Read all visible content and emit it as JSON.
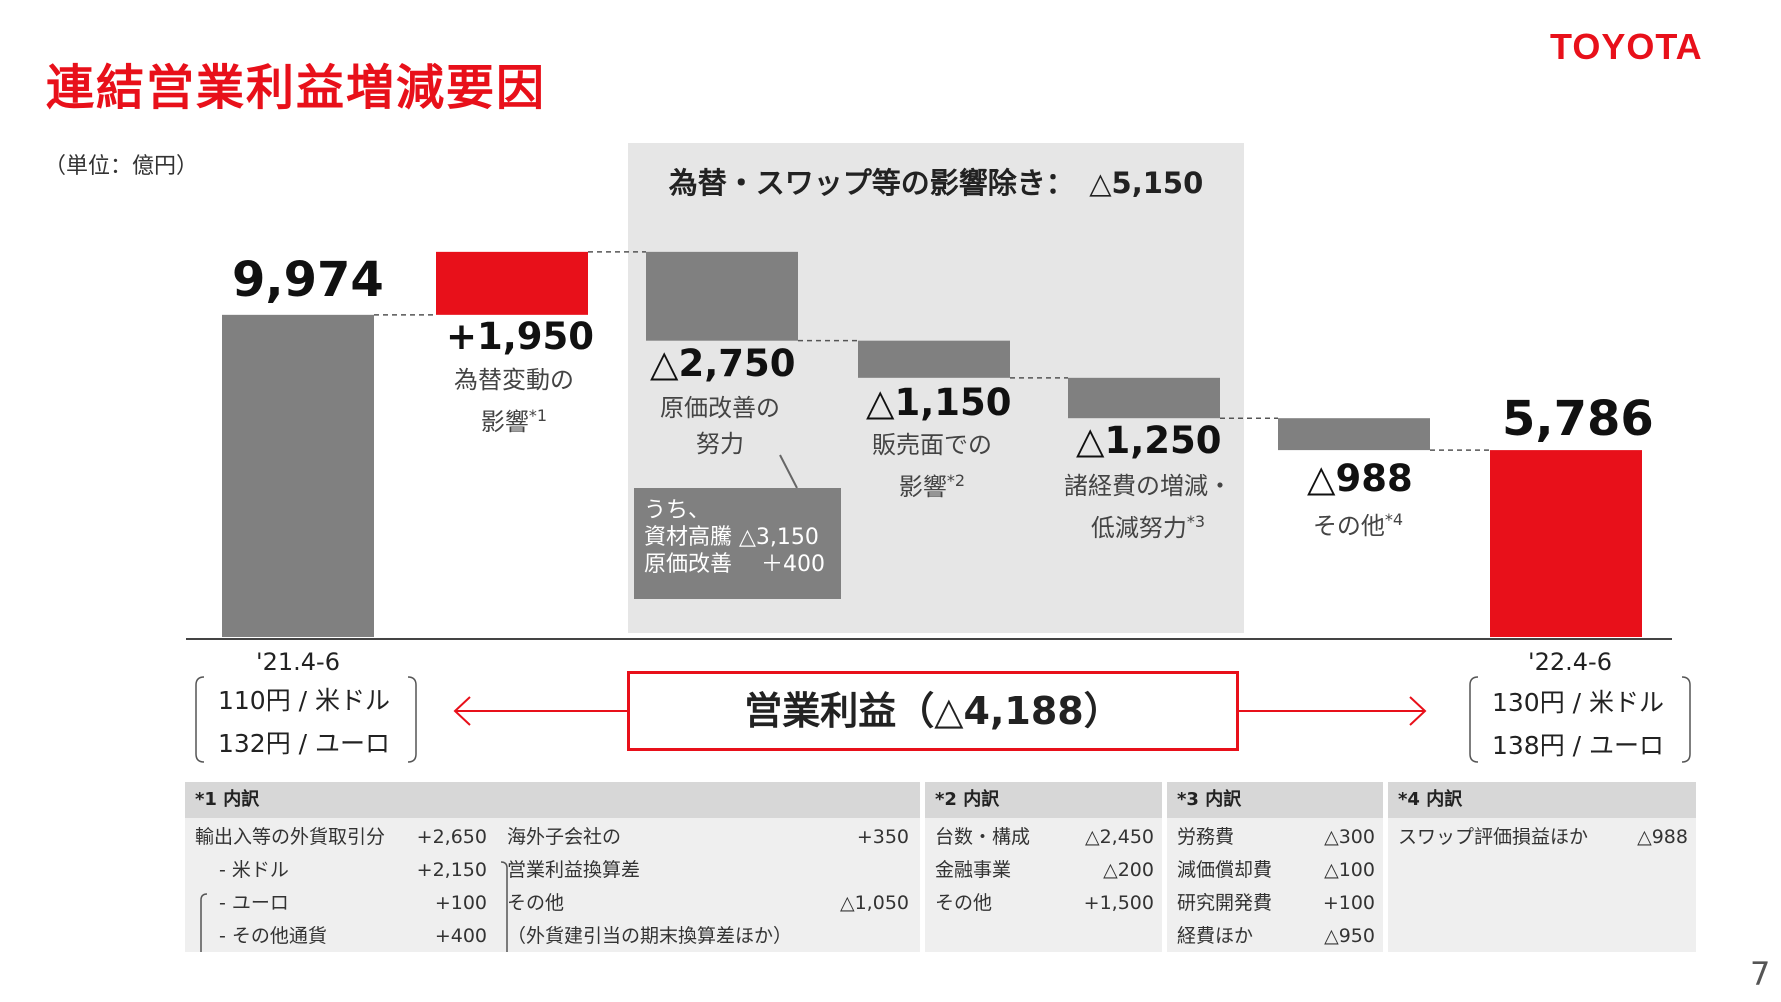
{
  "header": {
    "title": "連結営業利益増減要因",
    "logo": "TOYOTA",
    "unit": "（単位：億円）",
    "page_number": "7"
  },
  "colors": {
    "red": "#e8101a",
    "gray": "#808080",
    "shade": "#e6e6e6"
  },
  "shaded_area": {
    "title": "為替・スワップ等の影響除き：　△5,150"
  },
  "chart_data": {
    "type": "bar",
    "subtype": "waterfall",
    "categories": [
      "'21.4-6",
      "為替変動の影響",
      "原価改善の努力",
      "販売面での影響",
      "諸経費の増減・低減努力",
      "その他",
      "'22.4-6"
    ],
    "values": [
      9974,
      1950,
      -2750,
      -1150,
      -1250,
      -988,
      5786
    ],
    "kinds": [
      "total",
      "delta",
      "delta",
      "delta",
      "delta",
      "delta",
      "total"
    ],
    "bar_colors": [
      "#808080",
      "#e8101a",
      "#808080",
      "#808080",
      "#808080",
      "#808080",
      "#e8101a"
    ],
    "value_labels": [
      "9,974",
      "+1,950",
      "△2,750",
      "△1,150",
      "△1,250",
      "△988",
      "5,786"
    ],
    "category_labels": [
      {
        "lines": [
          "'21.4-6"
        ]
      },
      {
        "lines": [
          "為替変動の",
          "影響"
        ],
        "note": "*1"
      },
      {
        "lines": [
          "原価改善の",
          "努力"
        ]
      },
      {
        "lines": [
          "販売面での",
          "影響"
        ],
        "note": "*2"
      },
      {
        "lines": [
          "諸経費の増減・",
          "低減努力"
        ],
        "note": "*3"
      },
      {
        "lines": [
          "その他"
        ],
        "note": "*4"
      },
      {
        "lines": [
          "'22.4-6"
        ]
      }
    ]
  },
  "breakdown_box": {
    "lines": [
      "うち、",
      "資材高騰 △3,150",
      "原価改善　 ＋400"
    ]
  },
  "periods": {
    "left": {
      "label": "'21.4-6",
      "fx": [
        "110円 / 米ドル",
        "132円 / ユーロ"
      ]
    },
    "right": {
      "label": "'22.4-6",
      "fx": [
        "130円 / 米ドル",
        "138円 / ユーロ"
      ]
    }
  },
  "operating_income": {
    "label": "営業利益（△4,188）"
  },
  "tables": {
    "t1": {
      "title": "*1 内訳",
      "left_rows": [
        {
          "label": "輸出入等の外貨取引分",
          "value": "+2,650"
        },
        {
          "label": "- 米ドル",
          "value": "+2,150"
        },
        {
          "label": "- ユーロ",
          "value": "+100"
        },
        {
          "label": "- その他通貨",
          "value": "+400"
        }
      ],
      "right_rows": [
        {
          "label": "海外子会社の",
          "value": "+350"
        },
        {
          "label": "営業利益換算差",
          "value": ""
        },
        {
          "label": "その他",
          "value": "△1,050"
        },
        {
          "label": "（外貨建引当の期末換算差ほか）",
          "value": ""
        }
      ]
    },
    "t2": {
      "title": "*2 内訳",
      "rows": [
        {
          "label": "台数・構成",
          "value": "△2,450"
        },
        {
          "label": "金融事業",
          "value": "△200"
        },
        {
          "label": "その他",
          "value": "+1,500"
        }
      ]
    },
    "t3": {
      "title": "*3 内訳",
      "rows": [
        {
          "label": "労務費",
          "value": "△300"
        },
        {
          "label": "減価償却費",
          "value": "△100"
        },
        {
          "label": "研究開発費",
          "value": "+100"
        },
        {
          "label": "経費ほか",
          "value": "△950"
        }
      ]
    },
    "t4": {
      "title": "*4 内訳",
      "rows": [
        {
          "label": "スワップ評価損益ほか",
          "value": "△988"
        }
      ]
    }
  }
}
